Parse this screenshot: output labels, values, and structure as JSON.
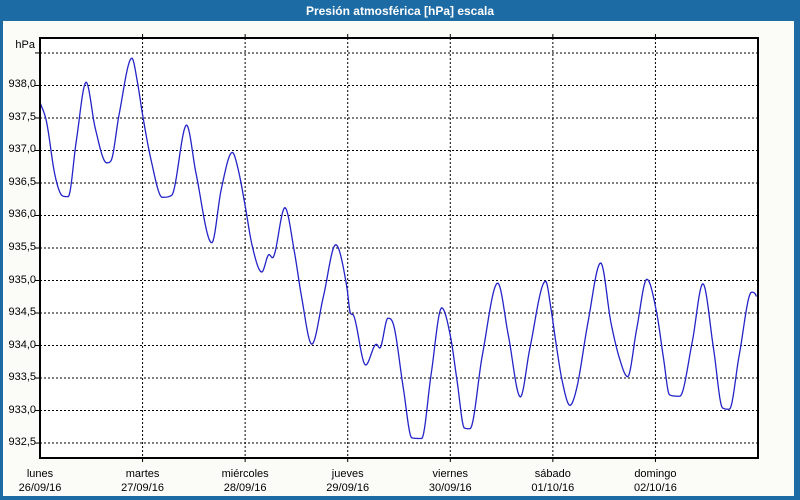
{
  "window": {
    "title": "Presión atmosférica [hPa] escala",
    "frame_color": "#1D6BA5",
    "title_text_color": "#FFFFFF",
    "content_background": "#FBFBF8"
  },
  "chart_data": {
    "type": "line",
    "title": "Presión atmosférica [hPa] escala",
    "y_axis_label": "hPa",
    "grid": "dashed-black",
    "plot_background": "#FFFFFF",
    "line_color": "#2424C8",
    "ylim": [
      932.27,
      938.73
    ],
    "xlim_hours": [
      0,
      168
    ],
    "y_ticks": [
      {
        "value": 938.5,
        "label": ""
      },
      {
        "value": 938.0,
        "label": "938,0"
      },
      {
        "value": 937.5,
        "label": "937,5"
      },
      {
        "value": 937.0,
        "label": "937,0"
      },
      {
        "value": 936.5,
        "label": "936,5"
      },
      {
        "value": 936.0,
        "label": "936,0"
      },
      {
        "value": 935.5,
        "label": "935,5"
      },
      {
        "value": 935.0,
        "label": "935,0"
      },
      {
        "value": 934.5,
        "label": "934,5"
      },
      {
        "value": 934.0,
        "label": "934,0"
      },
      {
        "value": 933.5,
        "label": "933,5"
      },
      {
        "value": 933.0,
        "label": "933,0"
      },
      {
        "value": 932.5,
        "label": "932,5"
      }
    ],
    "x_days": [
      {
        "weekday": "lunes",
        "date": "26/09/16"
      },
      {
        "weekday": "martes",
        "date": "27/09/16"
      },
      {
        "weekday": "miércoles",
        "date": "28/09/16"
      },
      {
        "weekday": "jueves",
        "date": "29/09/16"
      },
      {
        "weekday": "viernes",
        "date": "30/09/16"
      },
      {
        "weekday": "sábado",
        "date": "01/10/16"
      },
      {
        "weekday": "domingo",
        "date": "02/10/16"
      }
    ],
    "series": [
      {
        "name": "presion_atmosferica_hpa",
        "points": [
          [
            0,
            937.74
          ],
          [
            1.5,
            937.45
          ],
          [
            3.5,
            936.62
          ],
          [
            5.3,
            936.3
          ],
          [
            6.6,
            936.29
          ],
          [
            8.5,
            937.15
          ],
          [
            10.8,
            938.05
          ],
          [
            12.9,
            937.35
          ],
          [
            15.6,
            936.81
          ],
          [
            16.6,
            936.84
          ],
          [
            18.5,
            937.55
          ],
          [
            21.5,
            938.42
          ],
          [
            22.8,
            938.05
          ],
          [
            24,
            937.55
          ],
          [
            26,
            936.85
          ],
          [
            28.6,
            936.28
          ],
          [
            30.8,
            936.31
          ],
          [
            34.3,
            937.39
          ],
          [
            36.5,
            936.65
          ],
          [
            40.2,
            935.58
          ],
          [
            42.4,
            936.4
          ],
          [
            45.0,
            936.97
          ],
          [
            46.4,
            936.7
          ],
          [
            48,
            936.15
          ],
          [
            49.6,
            935.55
          ],
          [
            51.9,
            935.13
          ],
          [
            53.6,
            935.4
          ],
          [
            54.4,
            935.35
          ],
          [
            57.3,
            936.12
          ],
          [
            59.5,
            935.45
          ],
          [
            61.2,
            934.75
          ],
          [
            63.6,
            934.02
          ],
          [
            66.3,
            934.75
          ],
          [
            69.2,
            935.55
          ],
          [
            71.8,
            934.9
          ],
          [
            72.6,
            934.5
          ],
          [
            73.4,
            934.46
          ],
          [
            76.2,
            933.7
          ],
          [
            78.7,
            934.02
          ],
          [
            79.5,
            933.96
          ],
          [
            81.4,
            934.42
          ],
          [
            82.8,
            934.3
          ],
          [
            85.0,
            933.35
          ],
          [
            87.0,
            932.58
          ],
          [
            89.3,
            932.57
          ],
          [
            91.5,
            933.55
          ],
          [
            94.0,
            934.58
          ],
          [
            96.1,
            934.12
          ],
          [
            97.6,
            933.45
          ],
          [
            99.3,
            932.73
          ],
          [
            100.6,
            932.72
          ],
          [
            103.5,
            933.85
          ],
          [
            107.1,
            934.96
          ],
          [
            109.6,
            934.15
          ],
          [
            112.4,
            933.21
          ],
          [
            114.6,
            933.95
          ],
          [
            118.3,
            934.99
          ],
          [
            119.6,
            934.55
          ],
          [
            120.7,
            934.05
          ],
          [
            122.2,
            933.45
          ],
          [
            124.0,
            933.08
          ],
          [
            125.6,
            933.35
          ],
          [
            128.2,
            934.35
          ],
          [
            131.2,
            935.27
          ],
          [
            133.6,
            934.35
          ],
          [
            135.6,
            933.8
          ],
          [
            137.5,
            933.52
          ],
          [
            139.6,
            934.25
          ],
          [
            142.0,
            935.02
          ],
          [
            144.3,
            934.5
          ],
          [
            145.9,
            933.8
          ],
          [
            147.3,
            933.24
          ],
          [
            149.7,
            933.22
          ],
          [
            152.6,
            934.05
          ],
          [
            155.1,
            934.95
          ],
          [
            157.6,
            933.95
          ],
          [
            159.7,
            933.04
          ],
          [
            161.3,
            933.02
          ],
          [
            163.6,
            933.85
          ],
          [
            166.5,
            934.82
          ],
          [
            167.3,
            934.8
          ],
          [
            167.8,
            934.73
          ]
        ]
      }
    ]
  }
}
